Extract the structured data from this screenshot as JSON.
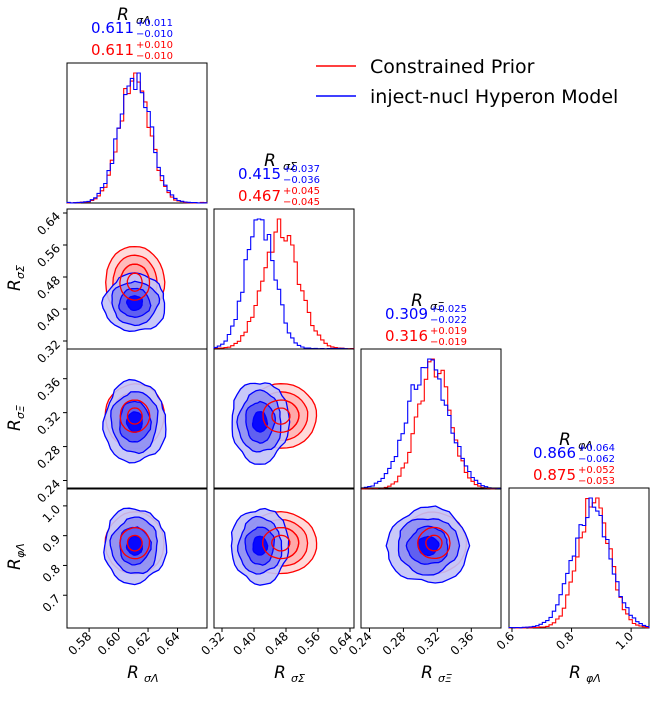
{
  "chart_data": {
    "type": "corner",
    "title": "",
    "colors": {
      "prior": "#ff0000",
      "model": "#0000ff"
    },
    "legend": {
      "position": "top-right",
      "entries": [
        {
          "label": "Constrained Prior",
          "color": "#ff0000"
        },
        {
          "label": "inject-nucl Hyperon Model",
          "color": "#0000ff"
        }
      ]
    },
    "parameters": [
      {
        "symbol": "R",
        "sub": "σΛ",
        "range": [
          0.565,
          0.66
        ],
        "ticks": [
          0.58,
          0.6,
          0.62,
          0.64
        ],
        "tick_labels": [
          "0.58",
          "0.60",
          "0.62",
          "0.64"
        ],
        "model": {
          "median": "0.611",
          "plus": "+0.011",
          "minus": "−0.010",
          "sd": 0.0105
        },
        "prior": {
          "median": "0.611",
          "plus": "+0.010",
          "minus": "−0.010",
          "sd": 0.01
        }
      },
      {
        "symbol": "R",
        "sub": "σΣ",
        "range": [
          0.3,
          0.65
        ],
        "ticks": [
          0.32,
          0.4,
          0.48,
          0.56,
          0.64
        ],
        "tick_labels": [
          "0.32",
          "0.40",
          "0.48",
          "0.56",
          "0.64"
        ],
        "model": {
          "median": "0.415",
          "plus": "+0.037",
          "minus": "−0.036",
          "sd": 0.036
        },
        "prior": {
          "median": "0.467",
          "plus": "+0.045",
          "minus": "−0.045",
          "sd": 0.045
        }
      },
      {
        "symbol": "R",
        "sub": "σΞ",
        "range": [
          0.23,
          0.395
        ],
        "ticks": [
          0.24,
          0.28,
          0.32,
          0.36
        ],
        "tick_labels": [
          "0.24",
          "0.28",
          "0.32",
          "0.36"
        ],
        "model": {
          "median": "0.309",
          "plus": "+0.025",
          "minus": "−0.022",
          "sd": 0.024
        },
        "prior": {
          "median": "0.316",
          "plus": "+0.019",
          "minus": "−0.019",
          "sd": 0.019
        }
      },
      {
        "symbol": "R",
        "sub": "φΛ",
        "range": [
          0.59,
          1.06
        ],
        "ticks": [
          0.6,
          0.8,
          1.0
        ],
        "tick_labels": [
          "0.6",
          "0.8",
          "1.0"
        ],
        "left_ticks": [
          0.7,
          0.8,
          0.9,
          1.0
        ],
        "left_tick_labels": [
          "0.7",
          "0.8",
          "0.9",
          "1.0"
        ],
        "model": {
          "median": "0.866",
          "plus": "+0.064",
          "minus": "−0.062",
          "sd": 0.063
        },
        "prior": {
          "median": "0.875",
          "plus": "+0.052",
          "minus": "−0.053",
          "sd": 0.052
        }
      }
    ],
    "contour_levels_sigma": [
      0.5,
      1.0,
      1.5,
      2.0
    ]
  }
}
